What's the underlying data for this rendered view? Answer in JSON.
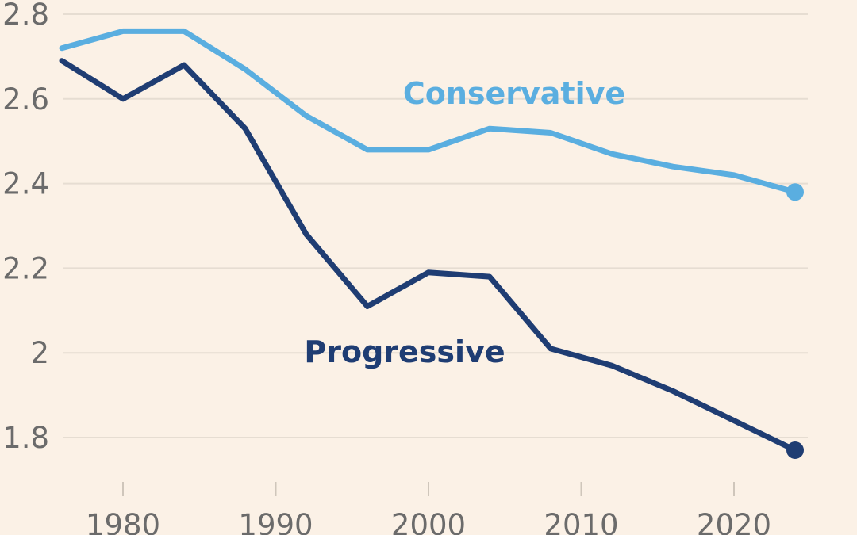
{
  "chart_data": {
    "type": "line",
    "title": "",
    "xlabel": "",
    "ylabel": "",
    "xlim": [
      1976,
      2024
    ],
    "ylim": [
      1.7,
      2.8
    ],
    "x_ticks": [
      1980,
      1990,
      2000,
      2010,
      2020
    ],
    "x_tick_labels": [
      "1980",
      "1990",
      "2000",
      "2010",
      "2020"
    ],
    "y_ticks": [
      1.8,
      2.0,
      2.2,
      2.4,
      2.6,
      2.8
    ],
    "y_tick_labels": [
      "1.8",
      "2",
      "2.2",
      "2.4",
      "2.6",
      "2.8"
    ],
    "grid": true,
    "legend": "direct-labels",
    "x": [
      1976,
      1980,
      1984,
      1988,
      1992,
      1996,
      2000,
      2004,
      2008,
      2012,
      2016,
      2020,
      2024
    ],
    "series": [
      {
        "name": "Conservative",
        "color": "#5aaee0",
        "values": [
          2.72,
          2.76,
          2.76,
          2.67,
          2.56,
          2.48,
          2.48,
          2.53,
          2.52,
          2.47,
          2.44,
          2.42,
          2.38
        ],
        "end_marker": true
      },
      {
        "name": "Progressive",
        "color": "#1f3d73",
        "values": [
          2.69,
          2.6,
          2.68,
          2.53,
          2.28,
          2.11,
          2.19,
          2.18,
          2.01,
          1.97,
          1.91,
          1.84,
          1.77
        ],
        "end_marker": true
      }
    ]
  }
}
